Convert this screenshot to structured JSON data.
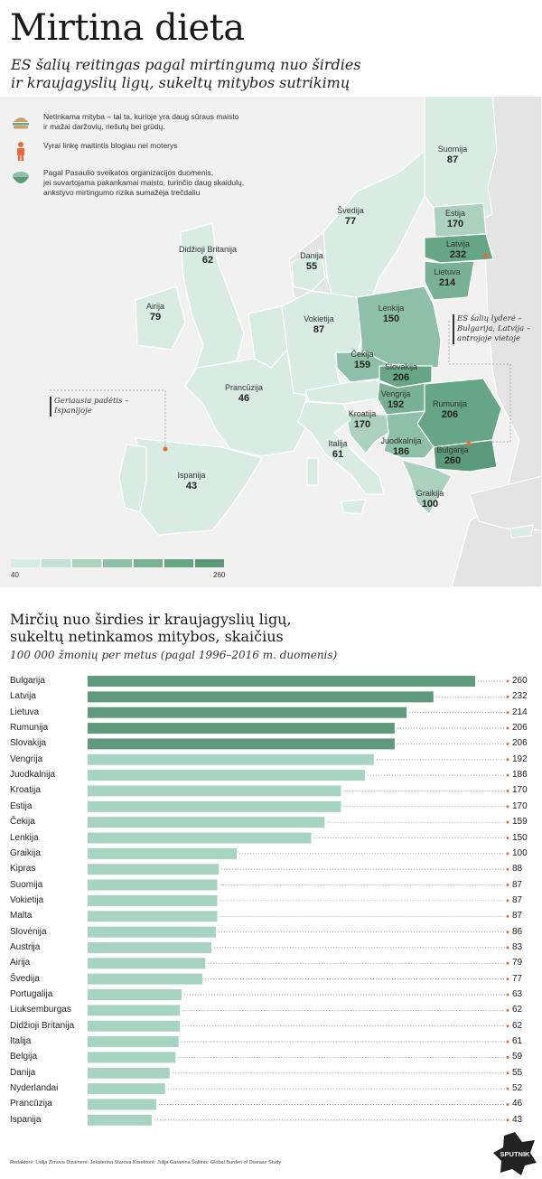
{
  "title": "Mirtina dieta",
  "subtitle_lines": [
    "ES šalių reitingas pagal mirtingumą nuo širdies",
    "ir kraujagyslių ligų, sukeltų mitybos sutrikimų"
  ],
  "legend": [
    {
      "icon": "burger-icon",
      "lines": [
        "Netinkama mityba – tai ta, kurioje yra daug sūraus maisto",
        "ir mažai daržovių, riešutų bei grūdų."
      ]
    },
    {
      "icon": "man-icon",
      "lines": [
        "Vyrai linkę maitintis blogiau nei moterys"
      ]
    },
    {
      "icon": "salad-bowl-icon",
      "lines": [
        "Pagal Pasaulio sveikatos organizacijos duomenis,",
        "jei suvartojama pakankamai maisto, turinčio daug skaidulų,",
        "ankstyvo mirtingumo rizika sumažėja trečdaliu"
      ]
    }
  ],
  "map": {
    "countries": [
      {
        "name": "Suomija",
        "value": "87"
      },
      {
        "name": "Švedija",
        "value": "77"
      },
      {
        "name": "Estija",
        "value": "170"
      },
      {
        "name": "Latvija",
        "value": "232"
      },
      {
        "name": "Lietuva",
        "value": "214"
      },
      {
        "name": "Danija",
        "value": "55"
      },
      {
        "name": "Didžioji Britanija",
        "value": "62"
      },
      {
        "name": "Airija",
        "value": "79"
      },
      {
        "name": "Vokietija",
        "value": "87"
      },
      {
        "name": "Lenkija",
        "value": "150"
      },
      {
        "name": "Čekija",
        "value": "159"
      },
      {
        "name": "Slovakija",
        "value": "206"
      },
      {
        "name": "Vengrija",
        "value": "192"
      },
      {
        "name": "Rumunija",
        "value": "206"
      },
      {
        "name": "Prancūzija",
        "value": "46"
      },
      {
        "name": "Kroatija",
        "value": "170"
      },
      {
        "name": "Juodkalnija",
        "value": "186"
      },
      {
        "name": "Bulgarija",
        "value": "260"
      },
      {
        "name": "Italija",
        "value": "61"
      },
      {
        "name": "Ispanija",
        "value": "43"
      },
      {
        "name": "Graikija",
        "value": "100"
      }
    ],
    "callout_leaders": [
      "ES šalių lyderė –",
      "Bulgarija, Latvija –",
      "antrojoje vietoje"
    ],
    "callout_worst": [
      "Geriausia padėtis –",
      "Ispanijoje"
    ],
    "scale_min": "40",
    "scale_max": "260",
    "scale_colors": [
      "#d9ece3",
      "#c4e0d2",
      "#acd2bf",
      "#8ec0a9",
      "#78b195",
      "#66a585",
      "#5a9a7a"
    ]
  },
  "colors": {
    "accent_dot": "#e76a3c",
    "bar_dark": "#5f9a7d",
    "bar_light": "#a7d4c0",
    "land_other": "#e4e4e4"
  },
  "section2": {
    "title_lines": [
      "Mirčių nuo širdies ir kraujagyslių ligų,",
      "sukeltų netinkamos mitybos, skaičius"
    ],
    "subtitle": "100 000 žmonių per metus (pagal 1996–2016 m. duomenis)"
  },
  "chart_data": {
    "type": "bar",
    "orientation": "horizontal",
    "title": "Mirčių nuo širdies ir kraujagyslių ligų, sukeltų netinkamos mitybos, skaičius",
    "subtitle": "100 000 žmonių per metus (pagal 1996–2016 m. duomenis)",
    "categories": [
      "Bulgarija",
      "Latvija",
      "Lietuva",
      "Rumunija",
      "Slovakija",
      "Vengrija",
      "Juodkalnija",
      "Kroatija",
      "Estija",
      "Čekija",
      "Lenkija",
      "Graikija",
      "Kipras",
      "Suomija",
      "Vokietija",
      "Malta",
      "Slovėnija",
      "Austrija",
      "Airija",
      "Švedija",
      "Portugalija",
      "Liuksemburgas",
      "Didžioji Britanija",
      "Italija",
      "Belgija",
      "Danija",
      "Nyderlandai",
      "Prancūzija",
      "Ispanija"
    ],
    "values": [
      260,
      232,
      214,
      206,
      206,
      192,
      186,
      170,
      170,
      159,
      150,
      100,
      88,
      87,
      87,
      87,
      86,
      83,
      79,
      77,
      63,
      62,
      62,
      61,
      59,
      55,
      52,
      46,
      43
    ],
    "xlim": [
      0,
      260
    ],
    "grid": false
  },
  "footer": "Redaktorė: Lidija Žimova Dizainerė: Jekaterina Starova Korektorė: Julija Garanina  Šaltinis: Global Burden of Disease Study",
  "brand": "SPUTNIK"
}
